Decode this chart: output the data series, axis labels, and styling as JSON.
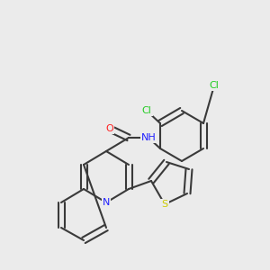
{
  "background_color": "#ebebeb",
  "bond_color": "#3a3a3a",
  "bond_width": 1.5,
  "atom_colors": {
    "N": "#2020ff",
    "O": "#ff2020",
    "S": "#cccc00",
    "Cl": "#22cc22",
    "C": "#3a3a3a",
    "H": "#3a3a3a"
  },
  "font_size": 7.5
}
